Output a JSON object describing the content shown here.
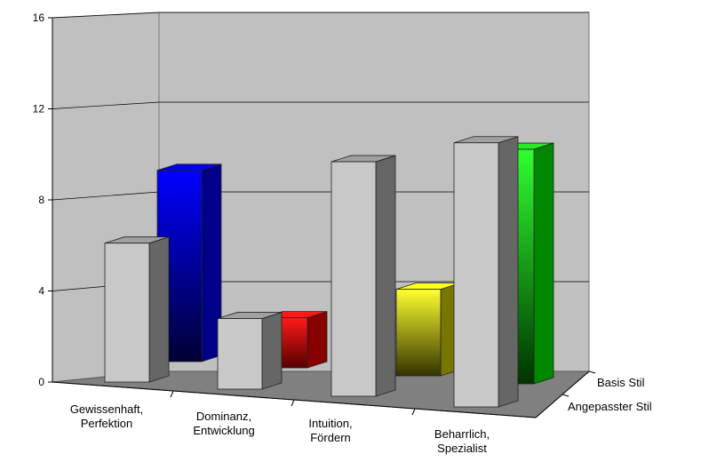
{
  "chart_data": {
    "type": "bar",
    "style": "3d-column",
    "categories": [
      [
        "Gewissenhaft,",
        "Perfektion"
      ],
      [
        "Dominanz,",
        "Entwicklung"
      ],
      [
        "Intuition,",
        "Fördern"
      ],
      [
        "Beharrlich,",
        "Spezialist"
      ]
    ],
    "series": [
      {
        "name": "Basis Stil",
        "values": [
          8.4,
          2.2,
          3.8,
          10.3
        ],
        "colors": [
          "#0000ee",
          "#ff1a1a",
          "#ffff22",
          "#22ee22"
        ]
      },
      {
        "name": "Angepasster Stil",
        "values": [
          6.1,
          3.1,
          10.3,
          11.6
        ],
        "colors": [
          "#c8c8c8",
          "#c8c8c8",
          "#c8c8c8",
          "#c8c8c8"
        ]
      }
    ],
    "yticks": [
      "0",
      "4",
      "8",
      "12",
      "16"
    ],
    "ylim": [
      0,
      16
    ],
    "grid": true,
    "legend": "depth-axis-labels-right",
    "wall_color": "#c0c0c0",
    "floor_color": "#808080"
  }
}
